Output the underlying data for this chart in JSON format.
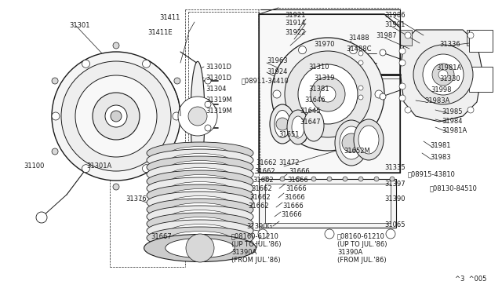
{
  "bg_color": "#ffffff",
  "line_color": "#1a1a1a",
  "fig_width": 6.4,
  "fig_height": 3.72,
  "dpi": 100,
  "page_ref": "^3  ^005",
  "labels": [
    [
      "31301",
      85,
      28,
      "left"
    ],
    [
      "31411",
      225,
      18,
      "left"
    ],
    [
      "31411E",
      198,
      40,
      "left"
    ],
    [
      "31301D",
      237,
      85,
      "left"
    ],
    [
      "31301D",
      237,
      99,
      "left"
    ],
    [
      "31304",
      237,
      113,
      "left"
    ],
    [
      "31319M",
      237,
      127,
      "left"
    ],
    [
      "31319M",
      237,
      141,
      "left"
    ],
    [
      "31921",
      365,
      18,
      "left"
    ],
    [
      "31914",
      365,
      28,
      "left"
    ],
    [
      "31922",
      365,
      40,
      "left"
    ],
    [
      "31970",
      398,
      56,
      "left"
    ],
    [
      "31963",
      318,
      75,
      "left"
    ],
    [
      "31924",
      318,
      90,
      "left"
    ],
    [
      "31310",
      388,
      85,
      "left"
    ],
    [
      "31319",
      395,
      99,
      "left"
    ],
    [
      "31381",
      388,
      113,
      "left"
    ],
    [
      "31488",
      440,
      48,
      "left"
    ],
    [
      "31488C",
      435,
      64,
      "left"
    ],
    [
      "31646",
      382,
      127,
      "left"
    ],
    [
      "31645",
      375,
      141,
      "left"
    ],
    [
      "31647",
      375,
      155,
      "left"
    ],
    [
      "31651",
      355,
      171,
      "left"
    ],
    [
      "31652M",
      430,
      191,
      "left"
    ],
    [
      "31472",
      355,
      207,
      "left"
    ],
    [
      "31662",
      312,
      207,
      "right"
    ],
    [
      "31662",
      312,
      218,
      "right"
    ],
    [
      "31662",
      312,
      229,
      "right"
    ],
    [
      "31662",
      310,
      240,
      "right"
    ],
    [
      "31662",
      310,
      252,
      "right"
    ],
    [
      "31662",
      310,
      263,
      "right"
    ],
    [
      "31376",
      155,
      252,
      "left"
    ],
    [
      "31666",
      358,
      218,
      "left"
    ],
    [
      "31666",
      358,
      229,
      "left"
    ],
    [
      "31666",
      358,
      240,
      "left"
    ],
    [
      "31666",
      358,
      252,
      "left"
    ],
    [
      "31666",
      356,
      263,
      "left"
    ],
    [
      "31666",
      356,
      274,
      "left"
    ],
    [
      "31667",
      195,
      299,
      "left"
    ],
    [
      "31100",
      18,
      213,
      "left"
    ],
    [
      "31301A",
      100,
      213,
      "left"
    ],
    [
      "31335",
      485,
      213,
      "left"
    ],
    [
      "31397",
      485,
      236,
      "left"
    ],
    [
      "31390",
      485,
      255,
      "left"
    ],
    [
      "31065",
      485,
      288,
      "left"
    ],
    [
      "31390G",
      310,
      288,
      "left"
    ],
    [
      "31986",
      488,
      18,
      "left"
    ],
    [
      "31991",
      488,
      30,
      "left"
    ],
    [
      "31987",
      476,
      44,
      "left"
    ],
    [
      "31336",
      590,
      55,
      "left"
    ],
    [
      "31330",
      590,
      99,
      "left"
    ],
    [
      "31981A",
      543,
      85,
      "left"
    ],
    [
      "31998",
      535,
      113,
      "left"
    ],
    [
      "31983A",
      530,
      127,
      "left"
    ],
    [
      "31985",
      555,
      141,
      "left"
    ],
    [
      "31984",
      555,
      153,
      "left"
    ],
    [
      "31981A",
      555,
      165,
      "left"
    ],
    [
      "31981",
      537,
      185,
      "left"
    ],
    [
      "31983",
      537,
      200,
      "left"
    ]
  ]
}
